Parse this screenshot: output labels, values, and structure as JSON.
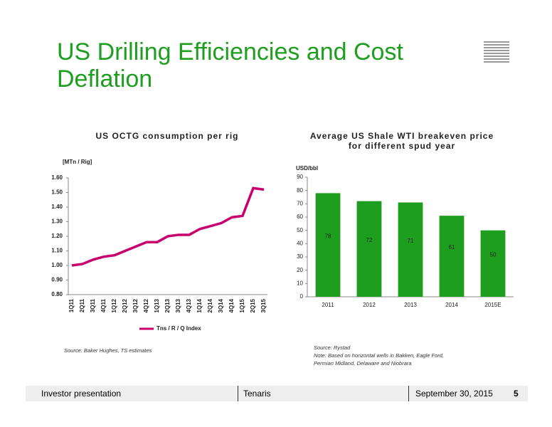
{
  "slide": {
    "title": "US Drilling Efficiencies and Cost Deflation",
    "footer_left": "Investor presentation",
    "footer_center": "Tenaris",
    "footer_date": "September 30, 2015",
    "page_number": "5"
  },
  "chart_data": [
    {
      "type": "line",
      "title": "US OCTG consumption per rig",
      "y_label": "[MTn / Rig]",
      "categories": [
        "1Q11",
        "2Q11",
        "3Q11",
        "4Q11",
        "1Q12",
        "2Q12",
        "3Q12",
        "4Q12",
        "1Q13",
        "2Q13",
        "3Q13",
        "4Q13",
        "1Q14",
        "2Q14",
        "3Q14",
        "4Q14",
        "1Q15",
        "2Q15",
        "3Q15"
      ],
      "series": [
        {
          "name": "Tns / R / Q Index",
          "color": "#c8006e",
          "values": [
            1.0,
            1.01,
            1.04,
            1.06,
            1.07,
            1.1,
            1.13,
            1.16,
            1.16,
            1.2,
            1.21,
            1.21,
            1.25,
            1.27,
            1.29,
            1.33,
            1.34,
            1.53,
            1.52
          ]
        }
      ],
      "ylim": [
        0.8,
        1.6
      ],
      "yticks": [
        {
          "value": 0.8,
          "label": "0.80"
        },
        {
          "value": 0.9,
          "label": "0.90"
        },
        {
          "value": 1.0,
          "label": "1.00"
        },
        {
          "value": 1.1,
          "label": "1.10"
        },
        {
          "value": 1.2,
          "label": "1.20"
        },
        {
          "value": 1.3,
          "label": "1.30"
        },
        {
          "value": 1.4,
          "label": "1.40"
        },
        {
          "value": 1.5,
          "label": "1.50"
        },
        {
          "value": 1.6,
          "label": "1.60"
        }
      ],
      "legend": "bottom",
      "source": "Source: Baker Hughes, TS estimates"
    },
    {
      "type": "bar",
      "title": "Average US Shale WTI breakeven price for different spud year",
      "y_label": "USD/bbl",
      "categories": [
        "2011",
        "2012",
        "2013",
        "2014",
        "2015E"
      ],
      "values": [
        78,
        72,
        71,
        61,
        50
      ],
      "color": "#1e9e1e",
      "ylim": [
        0,
        90
      ],
      "yticks": [
        0,
        10,
        20,
        30,
        40,
        50,
        60,
        70,
        80,
        90
      ],
      "source": "Source: Rystad",
      "note": "Note: Based on horizontal wells in Bakken, Eagle Ford, Permian Midland, Delaware and Niobrara"
    }
  ]
}
